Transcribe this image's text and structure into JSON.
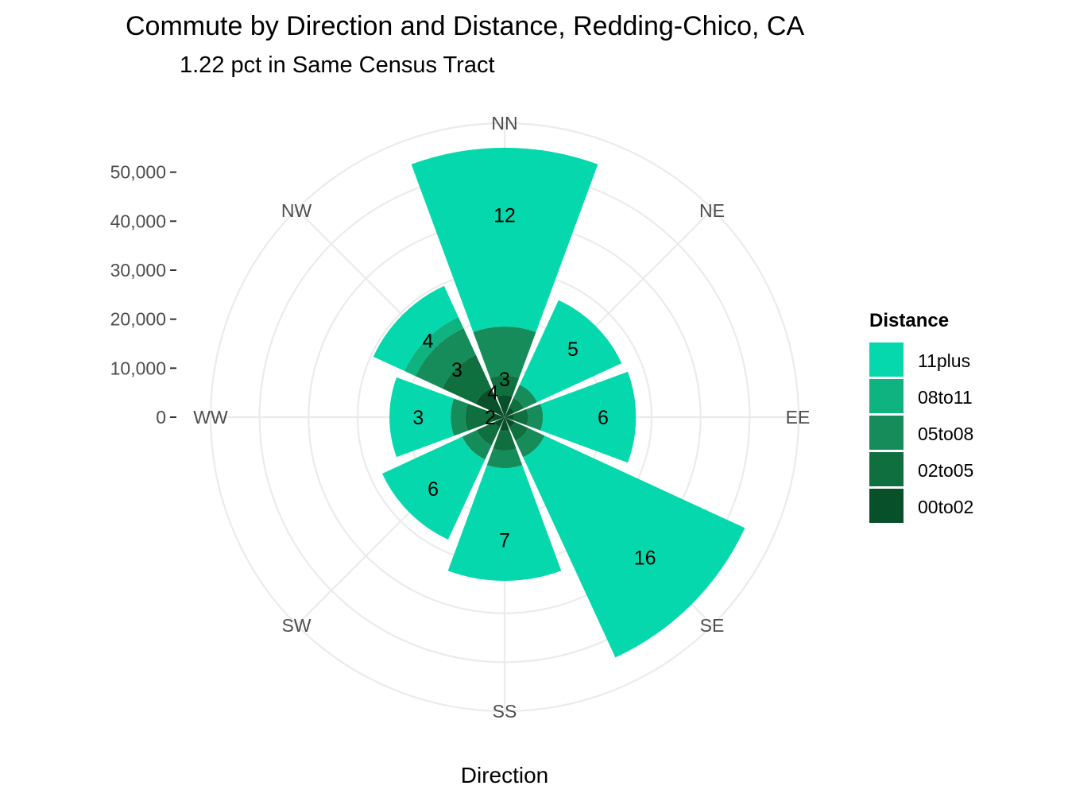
{
  "chart_data": {
    "type": "bar",
    "coord": "polar",
    "title": "Commute by Direction and Distance, Redding-Chico, CA",
    "subtitle": "1.22 pct in Same Census Tract",
    "xlabel": "Direction",
    "ylabel": "",
    "grid": true,
    "legend_position": "right",
    "legend_title": "Distance",
    "ylim": [
      0,
      60000
    ],
    "yticks": [
      0,
      10000,
      20000,
      30000,
      40000,
      50000
    ],
    "ytick_labels": [
      "0",
      "10,000",
      "20,000",
      "30,000",
      "40,000",
      "50,000"
    ],
    "categories": [
      "NN",
      "NE",
      "EE",
      "SE",
      "SS",
      "SW",
      "WW",
      "NW"
    ],
    "series": [
      {
        "name": "00to02",
        "color": "#08502a",
        "values": [
          4500,
          2200,
          1800,
          2300,
          2800,
          2300,
          2500,
          6500
        ]
      },
      {
        "name": "02to05",
        "color": "#0f6f3e",
        "values": [
          4000,
          2100,
          3000,
          3000,
          4000,
          4000,
          5500,
          7500
        ]
      },
      {
        "name": "05to08",
        "color": "#168c5a",
        "values": [
          10000,
          3000,
          3000,
          3700,
          3600,
          3200,
          3000,
          6000
        ]
      },
      {
        "name": "08to11",
        "color": "#0fb37f",
        "values": [
          0,
          0,
          0,
          0,
          0,
          0,
          0,
          2500
        ]
      },
      {
        "name": "11plus",
        "color": "#06d8ad",
        "values": [
          36500,
          19000,
          19000,
          45000,
          23000,
          18000,
          12500,
          7000
        ]
      }
    ],
    "bar_labels": [
      "12",
      "5",
      "6",
      "16",
      "7",
      "6",
      "3",
      "4"
    ],
    "inner_labels": [
      {
        "direction": "NN",
        "text": "3"
      },
      {
        "direction": "NW",
        "text": "3"
      },
      {
        "direction": "NW",
        "text": "4"
      },
      {
        "direction": "WW",
        "text": "2"
      }
    ]
  }
}
